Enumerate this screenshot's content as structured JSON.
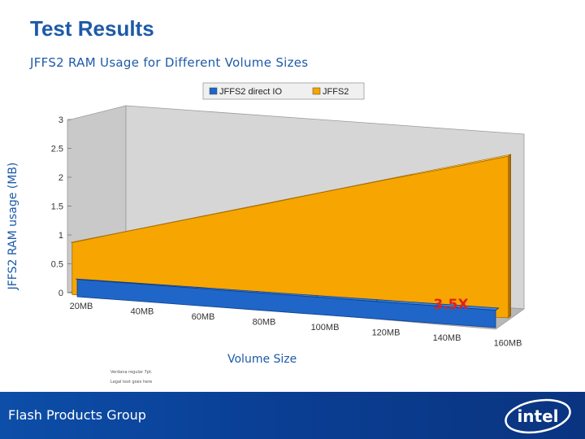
{
  "slide": {
    "title": "Test Results",
    "subtitle": "JFFS2 RAM Usage for Different Volume Sizes",
    "fine_print_1": "Verdana regular 7pt.",
    "fine_print_2": "Legal text goes here",
    "footer": "Flash Products Group",
    "logo_text": "intel"
  },
  "chart_data": {
    "type": "area",
    "subtype": "3d-area",
    "title": "JFFS2 RAM Usage for Different Volume Sizes",
    "xlabel": "Volume Size",
    "ylabel": "JFFS2 RAM usage (MB)",
    "categories": [
      "20MB",
      "40MB",
      "60MB",
      "80MB",
      "100MB",
      "120MB",
      "140MB",
      "160MB"
    ],
    "series": [
      {
        "name": "JFFS2 direct IO",
        "color": "#1f66c8",
        "values": [
          0.3,
          0.3,
          0.3,
          0.3,
          0.3,
          0.3,
          0.3,
          0.3
        ]
      },
      {
        "name": "JFFS2",
        "color": "#f7a500",
        "values": [
          0.9,
          1.18,
          1.45,
          1.72,
          2.0,
          2.27,
          2.53,
          2.8
        ]
      }
    ],
    "yticks": [
      "0",
      "0.5",
      "1",
      "1.5",
      "2",
      "2.5",
      "3"
    ],
    "ylim": [
      0,
      3
    ],
    "legend_position": "top",
    "grid": false,
    "annotation": "3.5X",
    "annotation_color": "#e02020"
  }
}
